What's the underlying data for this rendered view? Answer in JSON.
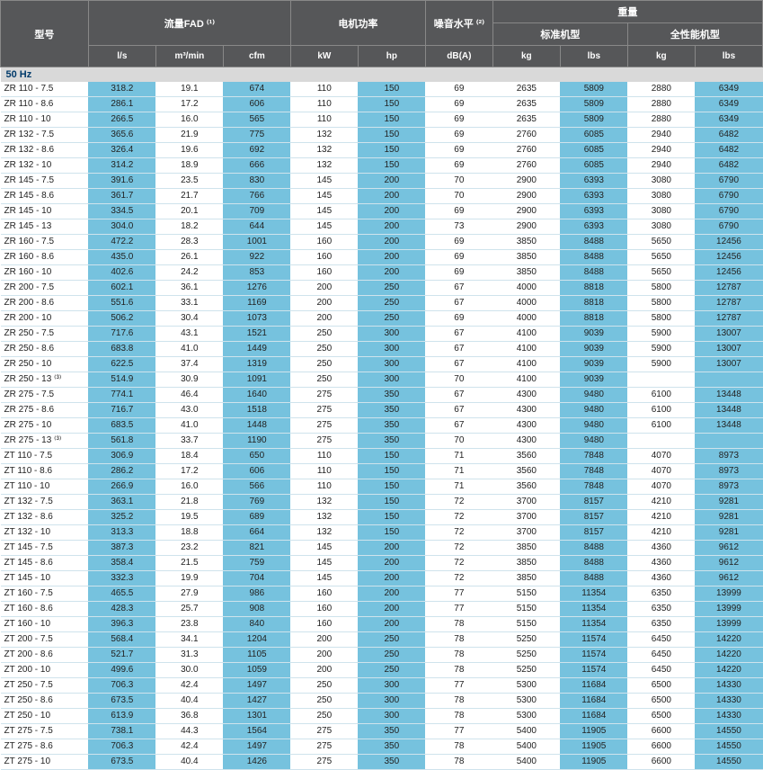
{
  "headers": {
    "model": "型号",
    "fad": "流量FAD ⁽¹⁾",
    "motor": "电机功率",
    "noise": "噪音水平 ⁽²⁾",
    "weight": "重量",
    "std": "标准机型",
    "full": "全性能机型",
    "u_ls": "l/s",
    "u_m3": "m³/min",
    "u_cfm": "cfm",
    "u_kw": "kW",
    "u_hp": "hp",
    "u_db": "dB(A)",
    "u_kg": "kg",
    "u_lbs": "lbs"
  },
  "section": "50 Hz",
  "hl_cols": [
    1,
    3,
    5,
    8,
    10
  ],
  "rows": [
    [
      "ZR 110 - 7.5",
      "318.2",
      "19.1",
      "674",
      "110",
      "150",
      "69",
      "2635",
      "5809",
      "2880",
      "6349"
    ],
    [
      "ZR 110 - 8.6",
      "286.1",
      "17.2",
      "606",
      "110",
      "150",
      "69",
      "2635",
      "5809",
      "2880",
      "6349"
    ],
    [
      "ZR 110 - 10",
      "266.5",
      "16.0",
      "565",
      "110",
      "150",
      "69",
      "2635",
      "5809",
      "2880",
      "6349"
    ],
    [
      "ZR 132 - 7.5",
      "365.6",
      "21.9",
      "775",
      "132",
      "150",
      "69",
      "2760",
      "6085",
      "2940",
      "6482"
    ],
    [
      "ZR 132 - 8.6",
      "326.4",
      "19.6",
      "692",
      "132",
      "150",
      "69",
      "2760",
      "6085",
      "2940",
      "6482"
    ],
    [
      "ZR 132 - 10",
      "314.2",
      "18.9",
      "666",
      "132",
      "150",
      "69",
      "2760",
      "6085",
      "2940",
      "6482"
    ],
    [
      "ZR 145 - 7.5",
      "391.6",
      "23.5",
      "830",
      "145",
      "200",
      "70",
      "2900",
      "6393",
      "3080",
      "6790"
    ],
    [
      "ZR 145 - 8.6",
      "361.7",
      "21.7",
      "766",
      "145",
      "200",
      "70",
      "2900",
      "6393",
      "3080",
      "6790"
    ],
    [
      "ZR 145 - 10",
      "334.5",
      "20.1",
      "709",
      "145",
      "200",
      "69",
      "2900",
      "6393",
      "3080",
      "6790"
    ],
    [
      "ZR 145 - 13",
      "304.0",
      "18.2",
      "644",
      "145",
      "200",
      "73",
      "2900",
      "6393",
      "3080",
      "6790"
    ],
    [
      "ZR 160 - 7.5",
      "472.2",
      "28.3",
      "1001",
      "160",
      "200",
      "69",
      "3850",
      "8488",
      "5650",
      "12456"
    ],
    [
      "ZR 160 - 8.6",
      "435.0",
      "26.1",
      "922",
      "160",
      "200",
      "69",
      "3850",
      "8488",
      "5650",
      "12456"
    ],
    [
      "ZR 160 - 10",
      "402.6",
      "24.2",
      "853",
      "160",
      "200",
      "69",
      "3850",
      "8488",
      "5650",
      "12456"
    ],
    [
      "ZR 200 - 7.5",
      "602.1",
      "36.1",
      "1276",
      "200",
      "250",
      "67",
      "4000",
      "8818",
      "5800",
      "12787"
    ],
    [
      "ZR 200 - 8.6",
      "551.6",
      "33.1",
      "1169",
      "200",
      "250",
      "67",
      "4000",
      "8818",
      "5800",
      "12787"
    ],
    [
      "ZR 200 - 10",
      "506.2",
      "30.4",
      "1073",
      "200",
      "250",
      "69",
      "4000",
      "8818",
      "5800",
      "12787"
    ],
    [
      "ZR 250 - 7.5",
      "717.6",
      "43.1",
      "1521",
      "250",
      "300",
      "67",
      "4100",
      "9039",
      "5900",
      "13007"
    ],
    [
      "ZR 250 - 8.6",
      "683.8",
      "41.0",
      "1449",
      "250",
      "300",
      "67",
      "4100",
      "9039",
      "5900",
      "13007"
    ],
    [
      "ZR 250 - 10",
      "622.5",
      "37.4",
      "1319",
      "250",
      "300",
      "67",
      "4100",
      "9039",
      "5900",
      "13007"
    ],
    [
      "ZR 250 - 13 ⁽³⁾",
      "514.9",
      "30.9",
      "1091",
      "250",
      "300",
      "70",
      "4100",
      "9039",
      "",
      ""
    ],
    [
      "ZR 275 - 7.5",
      "774.1",
      "46.4",
      "1640",
      "275",
      "350",
      "67",
      "4300",
      "9480",
      "6100",
      "13448"
    ],
    [
      "ZR 275 - 8.6",
      "716.7",
      "43.0",
      "1518",
      "275",
      "350",
      "67",
      "4300",
      "9480",
      "6100",
      "13448"
    ],
    [
      "ZR 275 - 10",
      "683.5",
      "41.0",
      "1448",
      "275",
      "350",
      "67",
      "4300",
      "9480",
      "6100",
      "13448"
    ],
    [
      "ZR 275 - 13 ⁽³⁾",
      "561.8",
      "33.7",
      "1190",
      "275",
      "350",
      "70",
      "4300",
      "9480",
      "",
      ""
    ],
    [
      "ZT 110 - 7.5",
      "306.9",
      "18.4",
      "650",
      "110",
      "150",
      "71",
      "3560",
      "7848",
      "4070",
      "8973"
    ],
    [
      "ZT 110 - 8.6",
      "286.2",
      "17.2",
      "606",
      "110",
      "150",
      "71",
      "3560",
      "7848",
      "4070",
      "8973"
    ],
    [
      "ZT 110 - 10",
      "266.9",
      "16.0",
      "566",
      "110",
      "150",
      "71",
      "3560",
      "7848",
      "4070",
      "8973"
    ],
    [
      "ZT 132 - 7.5",
      "363.1",
      "21.8",
      "769",
      "132",
      "150",
      "72",
      "3700",
      "8157",
      "4210",
      "9281"
    ],
    [
      "ZT 132 - 8.6",
      "325.2",
      "19.5",
      "689",
      "132",
      "150",
      "72",
      "3700",
      "8157",
      "4210",
      "9281"
    ],
    [
      "ZT 132 - 10",
      "313.3",
      "18.8",
      "664",
      "132",
      "150",
      "72",
      "3700",
      "8157",
      "4210",
      "9281"
    ],
    [
      "ZT 145 - 7.5",
      "387.3",
      "23.2",
      "821",
      "145",
      "200",
      "72",
      "3850",
      "8488",
      "4360",
      "9612"
    ],
    [
      "ZT 145 - 8.6",
      "358.4",
      "21.5",
      "759",
      "145",
      "200",
      "72",
      "3850",
      "8488",
      "4360",
      "9612"
    ],
    [
      "ZT 145 - 10",
      "332.3",
      "19.9",
      "704",
      "145",
      "200",
      "72",
      "3850",
      "8488",
      "4360",
      "9612"
    ],
    [
      "ZT 160 - 7.5",
      "465.5",
      "27.9",
      "986",
      "160",
      "200",
      "77",
      "5150",
      "11354",
      "6350",
      "13999"
    ],
    [
      "ZT 160 - 8.6",
      "428.3",
      "25.7",
      "908",
      "160",
      "200",
      "77",
      "5150",
      "11354",
      "6350",
      "13999"
    ],
    [
      "ZT 160 - 10",
      "396.3",
      "23.8",
      "840",
      "160",
      "200",
      "78",
      "5150",
      "11354",
      "6350",
      "13999"
    ],
    [
      "ZT 200 - 7.5",
      "568.4",
      "34.1",
      "1204",
      "200",
      "250",
      "78",
      "5250",
      "11574",
      "6450",
      "14220"
    ],
    [
      "ZT 200 - 8.6",
      "521.7",
      "31.3",
      "1105",
      "200",
      "250",
      "78",
      "5250",
      "11574",
      "6450",
      "14220"
    ],
    [
      "ZT 200 - 10",
      "499.6",
      "30.0",
      "1059",
      "200",
      "250",
      "78",
      "5250",
      "11574",
      "6450",
      "14220"
    ],
    [
      "ZT 250 - 7.5",
      "706.3",
      "42.4",
      "1497",
      "250",
      "300",
      "77",
      "5300",
      "11684",
      "6500",
      "14330"
    ],
    [
      "ZT 250 - 8.6",
      "673.5",
      "40.4",
      "1427",
      "250",
      "300",
      "78",
      "5300",
      "11684",
      "6500",
      "14330"
    ],
    [
      "ZT 250 - 10",
      "613.9",
      "36.8",
      "1301",
      "250",
      "300",
      "78",
      "5300",
      "11684",
      "6500",
      "14330"
    ],
    [
      "ZT 275 - 7.5",
      "738.1",
      "44.3",
      "1564",
      "275",
      "350",
      "77",
      "5400",
      "11905",
      "6600",
      "14550"
    ],
    [
      "ZT 275 - 8.6",
      "706.3",
      "42.4",
      "1497",
      "275",
      "350",
      "78",
      "5400",
      "11905",
      "6600",
      "14550"
    ],
    [
      "ZT 275 - 10",
      "673.5",
      "40.4",
      "1426",
      "275",
      "350",
      "78",
      "5400",
      "11905",
      "6600",
      "14550"
    ]
  ]
}
